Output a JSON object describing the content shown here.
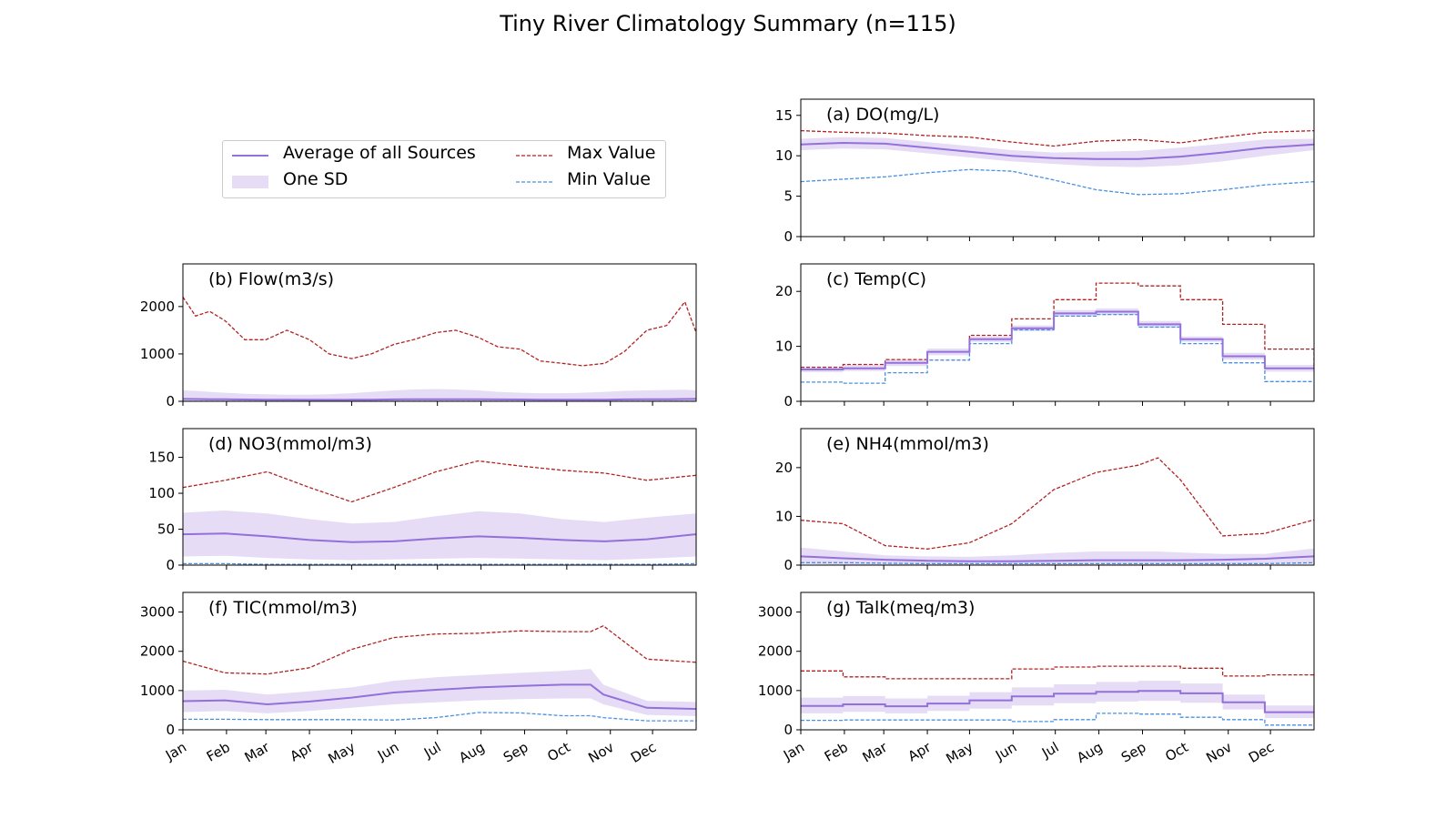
{
  "figure": {
    "title": "Tiny River Climatology Summary (n=115)"
  },
  "legend": {
    "mean_label": "Average of all Sources",
    "sd_label": "One SD",
    "max_label": "Max Value",
    "min_label": "Min Value"
  },
  "colors": {
    "mean": "#9370db",
    "sd": "#e6dcf5",
    "max": "#b22222",
    "min": "#4a90e2"
  },
  "months": [
    "Jan",
    "Feb",
    "Mar",
    "Apr",
    "May",
    "Jun",
    "Jul",
    "Aug",
    "Sep",
    "Oct",
    "Nov",
    "Dec"
  ],
  "chart_data": [
    {
      "id": "do",
      "type": "line",
      "title": "(a) DO(mg/L)",
      "xlabel": "",
      "ylabel": "",
      "ylim": [
        0,
        17
      ],
      "yticks": [
        0,
        5,
        10,
        15
      ],
      "xlim": [
        1,
        366
      ],
      "x": [
        1,
        31,
        61,
        91,
        121,
        151,
        181,
        211,
        241,
        271,
        301,
        331,
        366
      ],
      "series": [
        {
          "name": "Average of all Sources",
          "role": "mean",
          "values": [
            11.4,
            11.6,
            11.5,
            11.0,
            10.5,
            10.0,
            9.7,
            9.6,
            9.6,
            9.9,
            10.4,
            11.0,
            11.4
          ]
        },
        {
          "name": "One SD (lower)",
          "role": "sd_low",
          "values": [
            10.7,
            10.9,
            10.8,
            10.3,
            9.8,
            9.3,
            9.0,
            8.7,
            8.6,
            8.8,
            9.3,
            10.0,
            10.7
          ]
        },
        {
          "name": "One SD (upper)",
          "role": "sd_high",
          "values": [
            12.1,
            12.3,
            12.2,
            11.7,
            11.2,
            10.7,
            10.4,
            10.5,
            10.6,
            11.0,
            11.5,
            12.0,
            12.1
          ]
        },
        {
          "name": "Max Value",
          "role": "max",
          "values": [
            13.1,
            12.9,
            12.8,
            12.5,
            12.3,
            11.7,
            11.2,
            11.8,
            12.0,
            11.6,
            12.3,
            12.9,
            13.1
          ]
        },
        {
          "name": "Min Value",
          "role": "min",
          "values": [
            6.8,
            7.1,
            7.4,
            7.9,
            8.3,
            8.1,
            7.0,
            5.8,
            5.2,
            5.3,
            5.8,
            6.4,
            6.8
          ]
        }
      ]
    },
    {
      "id": "flow",
      "type": "line",
      "title": "(b) Flow(m3/s)",
      "xlabel": "",
      "ylabel": "",
      "ylim": [
        0,
        2900
      ],
      "yticks": [
        0,
        1000,
        2000
      ],
      "xlim": [
        1,
        366
      ],
      "x": [
        1,
        10,
        20,
        31,
        45,
        60,
        75,
        91,
        105,
        121,
        135,
        151,
        165,
        181,
        195,
        211,
        225,
        241,
        255,
        271,
        285,
        301,
        315,
        331,
        345,
        358,
        366
      ],
      "series": [
        {
          "name": "Average of all Sources",
          "role": "mean",
          "values": [
            50,
            48,
            45,
            42,
            38,
            35,
            32,
            30,
            30,
            32,
            35,
            40,
            42,
            45,
            44,
            42,
            40,
            38,
            35,
            33,
            33,
            35,
            40,
            42,
            45,
            48,
            50
          ]
        },
        {
          "name": "One SD (lower)",
          "role": "sd_low",
          "values": [
            0,
            0,
            0,
            0,
            0,
            0,
            0,
            0,
            0,
            0,
            0,
            0,
            0,
            0,
            0,
            0,
            0,
            0,
            0,
            0,
            0,
            0,
            0,
            0,
            0,
            0,
            0
          ]
        },
        {
          "name": "One SD (upper)",
          "role": "sd_high",
          "values": [
            230,
            220,
            200,
            180,
            160,
            150,
            140,
            140,
            150,
            170,
            200,
            230,
            250,
            260,
            250,
            230,
            200,
            180,
            170,
            170,
            180,
            200,
            220,
            230,
            240,
            245,
            230
          ]
        },
        {
          "name": "Max Value",
          "role": "max",
          "values": [
            2200,
            1800,
            1900,
            1700,
            1300,
            1300,
            1500,
            1300,
            1000,
            900,
            1000,
            1200,
            1300,
            1450,
            1500,
            1350,
            1150,
            1100,
            850,
            800,
            750,
            800,
            1050,
            1500,
            1600,
            2100,
            1450
          ]
        },
        {
          "name": "Min Value",
          "role": "min",
          "values": [
            0,
            0,
            0,
            0,
            0,
            0,
            0,
            0,
            0,
            0,
            0,
            0,
            0,
            0,
            0,
            0,
            0,
            0,
            0,
            0,
            0,
            0,
            0,
            0,
            0,
            0,
            0
          ]
        }
      ]
    },
    {
      "id": "temp",
      "type": "line",
      "step": true,
      "title": "(c) Temp(C)",
      "xlabel": "",
      "ylabel": "",
      "ylim": [
        0,
        25
      ],
      "yticks": [
        0,
        10,
        20
      ],
      "xlim": [
        1,
        366
      ],
      "x": [
        1,
        31,
        61,
        91,
        121,
        151,
        181,
        211,
        241,
        271,
        301,
        331,
        366
      ],
      "series": [
        {
          "name": "Average of all Sources",
          "role": "mean",
          "values": [
            5.8,
            6.0,
            7.0,
            9.0,
            11.3,
            13.3,
            16.0,
            16.3,
            14.0,
            11.3,
            8.2,
            6.0,
            6.0
          ]
        },
        {
          "name": "One SD (lower)",
          "role": "sd_low",
          "values": [
            5.3,
            5.5,
            6.4,
            8.4,
            10.8,
            12.8,
            15.4,
            15.7,
            13.4,
            10.8,
            7.6,
            5.4,
            5.4
          ]
        },
        {
          "name": "One SD (upper)",
          "role": "sd_high",
          "values": [
            6.3,
            6.6,
            7.6,
            9.6,
            11.8,
            13.8,
            16.6,
            16.9,
            14.6,
            11.8,
            8.8,
            6.6,
            6.6
          ]
        },
        {
          "name": "Max Value",
          "role": "max",
          "values": [
            6.2,
            6.7,
            7.6,
            9.0,
            12.0,
            15.0,
            18.5,
            21.5,
            21.0,
            18.5,
            14.0,
            9.5,
            6.2
          ]
        },
        {
          "name": "Min Value",
          "role": "min",
          "values": [
            3.5,
            3.3,
            5.2,
            7.5,
            10.5,
            13.0,
            15.5,
            15.8,
            13.5,
            10.5,
            7.0,
            3.6,
            3.6
          ]
        }
      ]
    },
    {
      "id": "no3",
      "type": "line",
      "title": "(d) NO3(mmol/m3)",
      "xlabel": "",
      "ylabel": "",
      "ylim": [
        0,
        190
      ],
      "yticks": [
        0,
        50,
        100,
        150
      ],
      "xlim": [
        1,
        366
      ],
      "x": [
        1,
        31,
        61,
        91,
        121,
        151,
        181,
        211,
        241,
        271,
        301,
        331,
        366
      ],
      "series": [
        {
          "name": "Average of all Sources",
          "role": "mean",
          "values": [
            43,
            44,
            40,
            35,
            32,
            33,
            37,
            40,
            38,
            35,
            33,
            36,
            43
          ]
        },
        {
          "name": "One SD (lower)",
          "role": "sd_low",
          "values": [
            12,
            13,
            10,
            8,
            7,
            8,
            9,
            10,
            9,
            8,
            7,
            9,
            12
          ]
        },
        {
          "name": "One SD (upper)",
          "role": "sd_high",
          "values": [
            73,
            76,
            72,
            64,
            58,
            60,
            68,
            75,
            72,
            64,
            60,
            66,
            72
          ]
        },
        {
          "name": "Max Value",
          "role": "max",
          "values": [
            108,
            118,
            130,
            108,
            88,
            108,
            130,
            145,
            138,
            132,
            128,
            118,
            125
          ]
        },
        {
          "name": "Min Value",
          "role": "min",
          "values": [
            2,
            2,
            1,
            1,
            1,
            1,
            1,
            1,
            1,
            1,
            1,
            1,
            2
          ]
        }
      ]
    },
    {
      "id": "nh4",
      "type": "line",
      "title": "(e) NH4(mmol/m3)",
      "xlabel": "",
      "ylabel": "",
      "ylim": [
        0,
        28
      ],
      "yticks": [
        0,
        10,
        20
      ],
      "xlim": [
        1,
        366
      ],
      "x": [
        1,
        31,
        61,
        91,
        121,
        151,
        181,
        211,
        241,
        255,
        271,
        301,
        331,
        366
      ],
      "series": [
        {
          "name": "Average of all Sources",
          "role": "mean",
          "values": [
            1.8,
            1.4,
            1.1,
            0.9,
            0.8,
            0.8,
            0.9,
            1.0,
            1.0,
            1.0,
            1.0,
            1.1,
            1.3,
            1.8
          ]
        },
        {
          "name": "One SD (lower)",
          "role": "sd_low",
          "values": [
            0.2,
            0.1,
            0.1,
            0.1,
            0.1,
            0.1,
            0.1,
            0.1,
            0.1,
            0.1,
            0.1,
            0.1,
            0.1,
            0.2
          ]
        },
        {
          "name": "One SD (upper)",
          "role": "sd_high",
          "values": [
            3.6,
            2.8,
            2.0,
            1.8,
            1.7,
            2.0,
            2.5,
            2.8,
            2.8,
            2.8,
            2.6,
            2.3,
            2.3,
            3.4
          ]
        },
        {
          "name": "Max Value",
          "role": "max",
          "values": [
            9.2,
            8.5,
            4.0,
            3.3,
            4.6,
            8.5,
            15.5,
            19.0,
            20.5,
            22.0,
            17.5,
            6.0,
            6.5,
            9.3
          ]
        },
        {
          "name": "Min Value",
          "role": "min",
          "values": [
            0.5,
            0.5,
            0.4,
            0.3,
            0.3,
            0.3,
            0.3,
            0.3,
            0.3,
            0.3,
            0.3,
            0.3,
            0.3,
            0.5
          ]
        }
      ]
    },
    {
      "id": "tic",
      "type": "line",
      "title": "(f) TIC(mmol/m3)",
      "xlabel": "",
      "ylabel": "",
      "ylim": [
        0,
        3500
      ],
      "yticks": [
        0,
        1000,
        2000,
        3000
      ],
      "xlim": [
        1,
        366
      ],
      "x": [
        1,
        31,
        61,
        91,
        121,
        151,
        181,
        211,
        241,
        271,
        291,
        300,
        331,
        366
      ],
      "series": [
        {
          "name": "Average of all Sources",
          "role": "mean",
          "values": [
            730,
            750,
            650,
            720,
            820,
            950,
            1020,
            1080,
            1120,
            1150,
            1150,
            900,
            560,
            530
          ]
        },
        {
          "name": "One SD (lower)",
          "role": "sd_low",
          "values": [
            450,
            480,
            420,
            480,
            560,
            650,
            700,
            750,
            780,
            800,
            800,
            650,
            380,
            350
          ]
        },
        {
          "name": "One SD (upper)",
          "role": "sd_high",
          "values": [
            1000,
            1020,
            900,
            980,
            1080,
            1250,
            1340,
            1400,
            1450,
            1500,
            1550,
            1150,
            740,
            710
          ]
        },
        {
          "name": "Max Value",
          "role": "max",
          "values": [
            1750,
            1450,
            1420,
            1580,
            2050,
            2350,
            2440,
            2460,
            2520,
            2500,
            2500,
            2650,
            1800,
            1720
          ]
        },
        {
          "name": "Min Value",
          "role": "min",
          "values": [
            270,
            270,
            260,
            260,
            260,
            250,
            310,
            440,
            430,
            360,
            360,
            310,
            230,
            230
          ]
        }
      ]
    },
    {
      "id": "talk",
      "type": "line",
      "step": true,
      "title": "(g) Talk(meq/m3)",
      "xlabel": "",
      "ylabel": "",
      "ylim": [
        0,
        3500
      ],
      "yticks": [
        0,
        1000,
        2000,
        3000
      ],
      "xlim": [
        1,
        366
      ],
      "x": [
        1,
        31,
        61,
        91,
        121,
        151,
        181,
        211,
        241,
        271,
        301,
        331,
        366
      ],
      "series": [
        {
          "name": "Average of all Sources",
          "role": "mean",
          "values": [
            610,
            650,
            600,
            670,
            750,
            850,
            920,
            970,
            990,
            930,
            700,
            450,
            450
          ]
        },
        {
          "name": "One SD (lower)",
          "role": "sd_low",
          "values": [
            420,
            460,
            420,
            480,
            540,
            620,
            680,
            720,
            740,
            690,
            520,
            300,
            300
          ]
        },
        {
          "name": "One SD (upper)",
          "role": "sd_high",
          "values": [
            820,
            860,
            800,
            870,
            960,
            1080,
            1160,
            1220,
            1250,
            1180,
            900,
            620,
            620
          ]
        },
        {
          "name": "Max Value",
          "role": "max",
          "values": [
            1500,
            1350,
            1300,
            1300,
            1300,
            1550,
            1600,
            1620,
            1620,
            1570,
            1370,
            1400,
            1400
          ]
        },
        {
          "name": "Min Value",
          "role": "min",
          "values": [
            240,
            250,
            250,
            250,
            250,
            210,
            260,
            420,
            400,
            320,
            260,
            120,
            120
          ]
        }
      ]
    }
  ]
}
